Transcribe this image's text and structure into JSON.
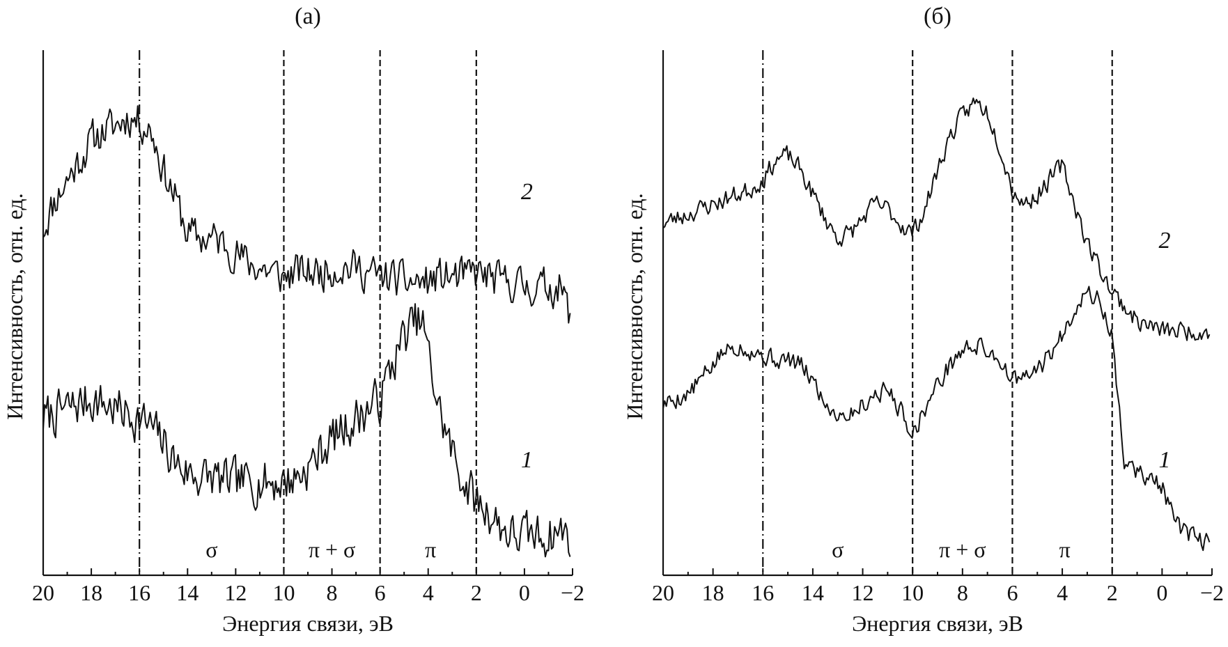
{
  "chart_data": [
    {
      "type": "line",
      "title": "(a)",
      "xlabel": "Энергия связи, эВ",
      "ylabel": "Интенсивность, отн. ед.",
      "xlim": [
        20,
        -2
      ],
      "x_reversed": true,
      "xticks": [
        20,
        18,
        16,
        14,
        12,
        10,
        8,
        6,
        4,
        2,
        0,
        -2
      ],
      "xtick_labels": [
        "20",
        "18",
        "16",
        "14",
        "12",
        "10",
        "8",
        "6",
        "4",
        "2",
        "0",
        "−2"
      ],
      "y_ticks_shown": false,
      "ylim": [
        0,
        100
      ],
      "grid": false,
      "legend": "none",
      "dividers": [
        {
          "x": 16,
          "style": "dash-dot"
        },
        {
          "x": 10,
          "style": "dashed"
        },
        {
          "x": 6,
          "style": "dashed"
        },
        {
          "x": 2,
          "style": "dashed"
        }
      ],
      "region_labels": [
        {
          "x": 13,
          "text": "σ"
        },
        {
          "x": 8,
          "text": "π + σ"
        },
        {
          "x": 3.9,
          "text": "π"
        }
      ],
      "series": [
        {
          "label": "2",
          "label_x": -0.1,
          "label_y": 72,
          "noise": 2.2,
          "seed": 11,
          "x": [
            20,
            19.5,
            19,
            18.5,
            18,
            17.5,
            17,
            16.5,
            16,
            15.5,
            15,
            14.5,
            14,
            13.5,
            13,
            12.5,
            12,
            11.5,
            11,
            10.5,
            10,
            9.5,
            9,
            8.5,
            8,
            7.5,
            7,
            6.5,
            6,
            5.5,
            5,
            4.5,
            4,
            3.5,
            3,
            2.5,
            2,
            1.5,
            1,
            0.5,
            0,
            -0.5,
            -1,
            -1.5,
            -1.9
          ],
          "y": [
            66,
            72,
            76,
            80,
            84,
            86,
            87,
            89,
            88,
            86,
            78,
            72,
            65,
            64,
            64,
            63,
            61,
            59,
            58,
            57,
            56,
            57,
            57,
            57,
            58,
            58,
            58,
            57,
            56,
            56,
            55,
            55,
            55,
            56,
            56,
            56,
            57,
            56,
            55,
            55,
            54,
            54,
            54,
            54,
            48
          ]
        },
        {
          "label": "1",
          "label_x": -0.1,
          "label_y": 17,
          "noise": 2.6,
          "seed": 7,
          "x": [
            20,
            19.5,
            19,
            18.5,
            18,
            17.5,
            17,
            16.5,
            16,
            15.5,
            15,
            14.5,
            14,
            13.5,
            13,
            12.5,
            12,
            11.5,
            11,
            10.5,
            10,
            9.5,
            9,
            8.5,
            8,
            7.5,
            7,
            6.5,
            6,
            5.5,
            5,
            4.5,
            4.2,
            4,
            3.5,
            3,
            2.5,
            2,
            1.5,
            1,
            0.5,
            0,
            -0.5,
            -1,
            -1.5,
            -1.9
          ],
          "y": [
            27,
            28,
            29,
            30,
            31,
            30,
            29,
            28,
            27,
            25,
            22,
            18,
            16,
            15,
            15,
            14,
            14,
            14,
            14,
            14,
            14,
            15,
            17,
            20,
            23,
            25,
            27,
            29,
            31,
            38,
            44,
            47,
            46,
            40,
            28,
            20,
            14,
            10,
            8,
            5,
            3,
            3,
            3,
            3,
            4,
            3
          ]
        }
      ]
    },
    {
      "type": "line",
      "title": "(б)",
      "xlabel": "Энергия связи, эВ",
      "ylabel": "Интенсивность, отн. ед.",
      "xlim": [
        20,
        -2
      ],
      "x_reversed": true,
      "xticks": [
        20,
        18,
        16,
        14,
        12,
        10,
        8,
        6,
        4,
        2,
        0,
        -2
      ],
      "xtick_labels": [
        "20",
        "18",
        "16",
        "14",
        "12",
        "10",
        "8",
        "6",
        "4",
        "2",
        "0",
        "−2"
      ],
      "y_ticks_shown": false,
      "ylim": [
        0,
        100
      ],
      "grid": false,
      "legend": "none",
      "dividers": [
        {
          "x": 16,
          "style": "dash-dot"
        },
        {
          "x": 10,
          "style": "dashed"
        },
        {
          "x": 6,
          "style": "dashed"
        },
        {
          "x": 2,
          "style": "dashed"
        }
      ],
      "region_labels": [
        {
          "x": 13,
          "text": "σ"
        },
        {
          "x": 8,
          "text": "π + σ"
        },
        {
          "x": 3.9,
          "text": "π"
        }
      ],
      "series": [
        {
          "label": "2",
          "label_x": -0.1,
          "label_y": 62,
          "noise": 1.1,
          "seed": 23,
          "x": [
            20,
            19.5,
            19,
            18.5,
            18,
            17.5,
            17,
            16.5,
            16,
            15.5,
            15,
            14.5,
            14,
            13.5,
            13,
            12.5,
            12,
            11.5,
            11,
            10.5,
            10,
            9.5,
            9,
            8.5,
            8,
            7.5,
            7,
            6.5,
            6,
            5.5,
            5,
            4.5,
            4,
            3.5,
            3,
            2.5,
            2,
            1.5,
            1,
            0.5,
            0,
            -0.5,
            -1,
            -1.5,
            -1.9
          ],
          "y": [
            67,
            68,
            69,
            70,
            71,
            72,
            73,
            74,
            76,
            80,
            81,
            78,
            73,
            68,
            64,
            65,
            68,
            71,
            70,
            67,
            65,
            70,
            78,
            85,
            89,
            92,
            90,
            83,
            74,
            71,
            73,
            76,
            79,
            71,
            63,
            58,
            53,
            50,
            47,
            46,
            45,
            45,
            45,
            45,
            45
          ]
        },
        {
          "label": "1",
          "label_x": -0.1,
          "label_y": 17,
          "noise": 1.1,
          "seed": 5,
          "x": [
            20,
            19.5,
            19,
            18.5,
            18,
            17.5,
            17,
            16.5,
            16,
            15.5,
            15,
            14.5,
            14,
            13.5,
            13,
            12.5,
            12,
            11.5,
            11,
            10.5,
            10,
            9.5,
            9,
            8.5,
            8,
            7.5,
            7,
            6.5,
            6,
            5.5,
            5,
            4.5,
            4,
            3.5,
            3,
            2.5,
            2,
            1.8,
            1.5,
            1,
            0.5,
            0,
            -0.5,
            -1,
            -1.5,
            -1.9
          ],
          "y": [
            30,
            31,
            32,
            35,
            38,
            41,
            42,
            41,
            40,
            39,
            39,
            38,
            35,
            30,
            28,
            28,
            30,
            32,
            33,
            29,
            24,
            29,
            34,
            38,
            41,
            42,
            41,
            39,
            35,
            35,
            37,
            40,
            44,
            50,
            53,
            51,
            44,
            32,
            18,
            16,
            15,
            13,
            6,
            3,
            2,
            2
          ]
        }
      ]
    }
  ]
}
